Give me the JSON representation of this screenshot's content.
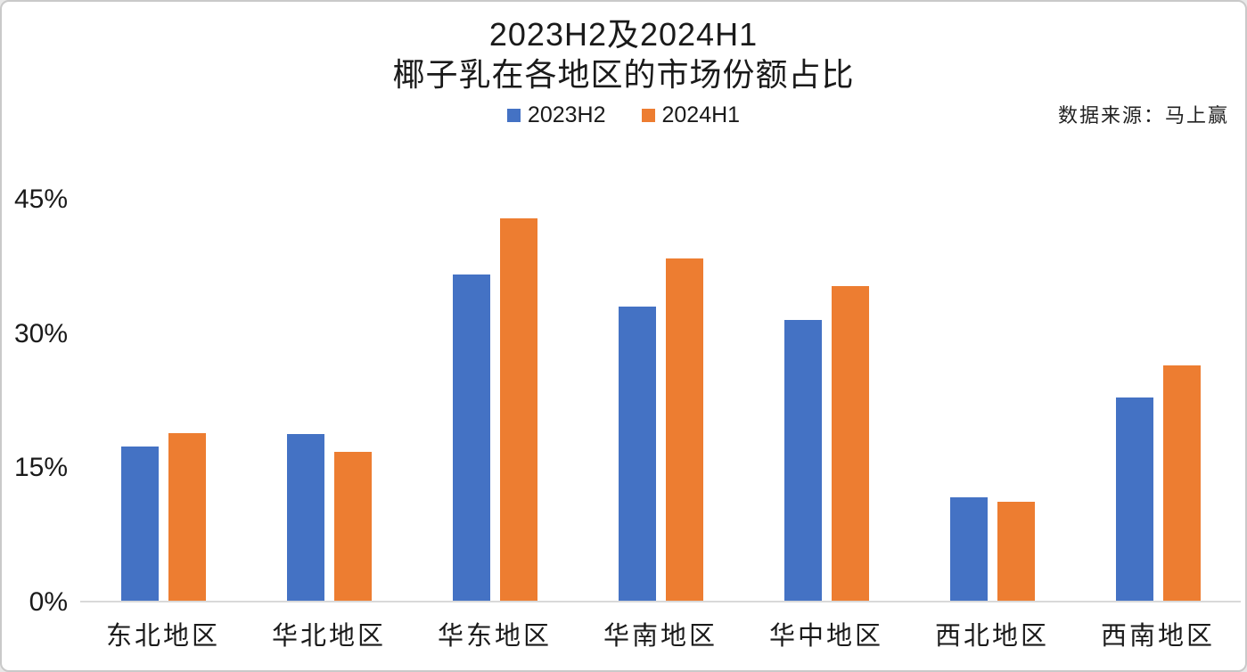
{
  "title": {
    "line1": "2023H2及2024H1",
    "line2": "椰子乳在各地区的市场份额占比"
  },
  "source": "数据来源：马上赢",
  "legend": {
    "items": [
      {
        "label": "2023H2",
        "color": "#4472C4"
      },
      {
        "label": "2024H1",
        "color": "#ED7D31"
      }
    ]
  },
  "axis": {
    "ymax": 45,
    "yticks": {
      "labels": [
        "0%",
        "15%",
        "30%",
        "45%"
      ],
      "values": [
        0,
        15,
        30,
        45
      ]
    }
  },
  "chart_data": {
    "type": "bar",
    "title": "2023H2及2024H1 椰子乳在各地区的市场份额占比",
    "subtitle": "",
    "source_note": "数据来源：马上赢",
    "categories": [
      "东北地区",
      "华北地区",
      "华东地区",
      "华南地区",
      "华中地区",
      "西北地区",
      "西南地区"
    ],
    "series": [
      {
        "name": "2023H2",
        "color": "#4472C4",
        "values": [
          17.3,
          18.7,
          36.6,
          33.0,
          31.5,
          11.6,
          22.8
        ]
      },
      {
        "name": "2024H1",
        "color": "#ED7D31",
        "values": [
          18.8,
          16.7,
          42.9,
          38.4,
          35.3,
          11.1,
          26.4
        ]
      }
    ],
    "unit": "%",
    "xlabel": "",
    "ylabel": "",
    "ylim": [
      0,
      45
    ],
    "ytick_labels": [
      "0%",
      "15%",
      "30%",
      "45%"
    ],
    "grid": false,
    "legend_position": "top"
  }
}
